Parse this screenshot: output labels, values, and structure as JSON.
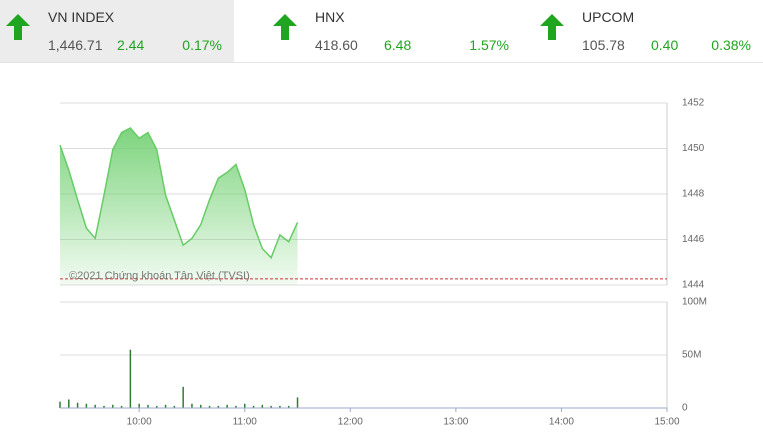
{
  "tickers": [
    {
      "name": "VN INDEX",
      "value": "1,446.71",
      "change": "2.44",
      "percent": "0.17%"
    },
    {
      "name": "HNX",
      "value": "418.60",
      "change": "6.48",
      "percent": "1.57%"
    },
    {
      "name": "UPCOM",
      "value": "105.78",
      "change": "0.40",
      "percent": "0.38%"
    }
  ],
  "chart_data": [
    {
      "type": "area",
      "color": "#66cc66",
      "annotation": "©2021 Chứng khoán Tân Việt (TVSI)",
      "reference_line": 1444.27,
      "reference_color": "#cc3333",
      "xlim": [
        "09:15",
        "15:00"
      ],
      "x": [
        "09:15",
        "09:20",
        "09:25",
        "09:30",
        "09:35",
        "09:40",
        "09:45",
        "09:50",
        "09:55",
        "10:00",
        "10:05",
        "10:10",
        "10:15",
        "10:20",
        "10:25",
        "10:30",
        "10:35",
        "10:40",
        "10:45",
        "10:50",
        "10:55",
        "11:00",
        "11:05",
        "11:10",
        "11:15",
        "11:20",
        "11:25",
        "11:30"
      ],
      "values": [
        1450.15,
        1449.05,
        1447.75,
        1446.5,
        1446.05,
        1447.95,
        1449.95,
        1450.7,
        1450.9,
        1450.45,
        1450.7,
        1449.95,
        1447.95,
        1446.85,
        1445.75,
        1446.05,
        1446.65,
        1447.75,
        1448.7,
        1448.95,
        1449.3,
        1448.2,
        1446.65,
        1445.6,
        1445.2,
        1446.2,
        1445.9,
        1446.75
      ],
      "ylim": [
        1444,
        1452
      ],
      "yticks": [
        1444,
        1446,
        1448,
        1450,
        1452
      ],
      "grid": true
    },
    {
      "type": "bar",
      "color": "#2e7d32",
      "xlim": [
        "09:15",
        "15:00"
      ],
      "xticks": [
        "10:00",
        "11:00",
        "12:00",
        "13:00",
        "14:00",
        "15:00"
      ],
      "x": [
        "09:15",
        "09:20",
        "09:25",
        "09:30",
        "09:35",
        "09:40",
        "09:45",
        "09:50",
        "09:55",
        "10:00",
        "10:05",
        "10:10",
        "10:15",
        "10:20",
        "10:25",
        "10:30",
        "10:35",
        "10:40",
        "10:45",
        "10:50",
        "10:55",
        "11:00",
        "11:05",
        "11:10",
        "11:15",
        "11:20",
        "11:25",
        "11:30"
      ],
      "values": [
        6000000,
        8000000,
        5000000,
        4000000,
        3000000,
        2000000,
        3000000,
        2000000,
        55000000,
        4000000,
        3000000,
        2000000,
        3000000,
        2000000,
        20000000,
        4000000,
        3000000,
        2000000,
        2000000,
        3000000,
        2000000,
        4000000,
        2000000,
        3000000,
        2000000,
        2000000,
        2000000,
        10000000
      ],
      "ylim": [
        0,
        100000000
      ],
      "yticks": [
        {
          "value": 0,
          "label": "0"
        },
        {
          "value": 50000000,
          "label": "50M"
        },
        {
          "value": 100000000,
          "label": "100M"
        }
      ],
      "grid": true
    }
  ]
}
